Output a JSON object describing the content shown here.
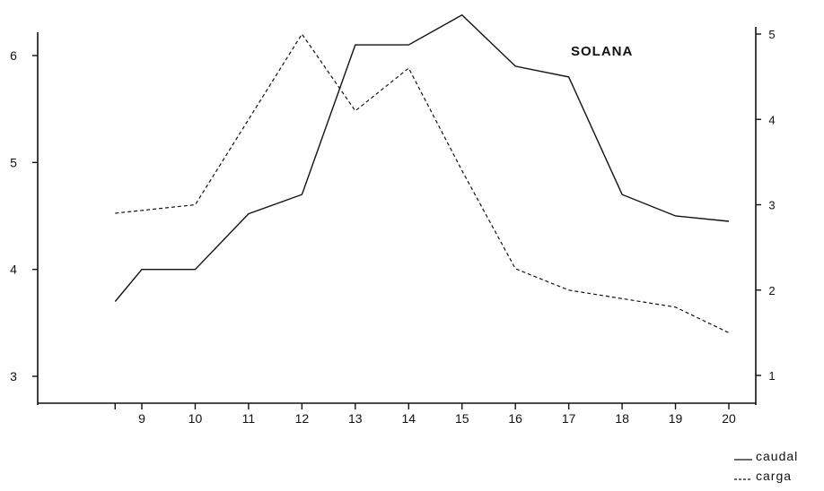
{
  "chart_data": {
    "type": "line",
    "title": "SOLANA",
    "x": [
      8.5,
      9,
      10,
      11,
      12,
      13,
      14,
      15,
      16,
      17,
      18,
      19,
      20
    ],
    "x_tick_labels": [
      "9",
      "10",
      "11",
      "12",
      "13",
      "14",
      "15",
      "16",
      "17",
      "18",
      "19",
      "20"
    ],
    "x_ticks": [
      9,
      10,
      11,
      12,
      13,
      14,
      15,
      16,
      17,
      18,
      19,
      20
    ],
    "xlim": [
      7.6,
      20.2
    ],
    "y_left_ticks": [
      3,
      4,
      5,
      6
    ],
    "y_left_tick_labels": [
      "3",
      "4",
      "5",
      "6"
    ],
    "ylim_left": [
      2.75,
      6.45
    ],
    "y_right_ticks": [
      1,
      2,
      3,
      4,
      5
    ],
    "y_right_tick_labels": [
      "1",
      "2",
      "3",
      "4",
      "5"
    ],
    "ylim_right": [
      0.7,
      5.1
    ],
    "series": [
      {
        "name": "caudal",
        "axis": "left",
        "style": "solid",
        "x": [
          8.5,
          9,
          10,
          11,
          12,
          13,
          14,
          15,
          16,
          17,
          18,
          19,
          20
        ],
        "values": [
          3.7,
          4.0,
          4.0,
          4.52,
          4.7,
          6.1,
          6.1,
          6.38,
          5.9,
          5.8,
          4.7,
          4.5,
          4.45
        ]
      },
      {
        "name": "carga",
        "axis": "right",
        "style": "dashed",
        "x": [
          8.5,
          10,
          12,
          13,
          14,
          15,
          16,
          17,
          18,
          19,
          20
        ],
        "values": [
          2.9,
          3.0,
          5.0,
          4.1,
          4.6,
          3.4,
          2.25,
          2.0,
          1.9,
          1.8,
          1.5
        ]
      }
    ],
    "legend": {
      "placement": "bottom-right",
      "items": [
        {
          "label": "caudal",
          "style": "solid"
        },
        {
          "label": "carga",
          "style": "dashed"
        }
      ]
    },
    "grid": false
  }
}
